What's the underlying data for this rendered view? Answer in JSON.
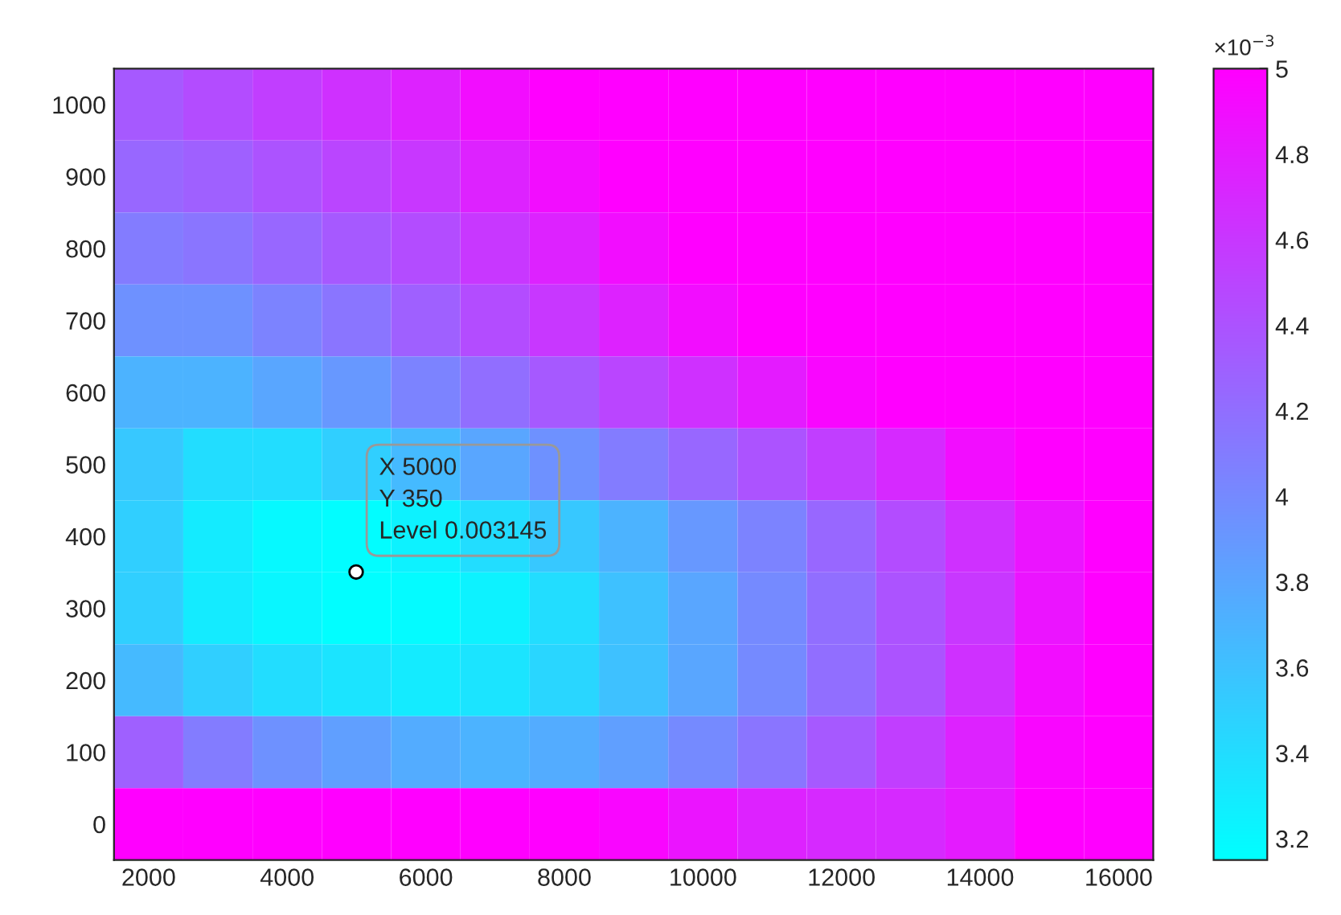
{
  "chart_data": {
    "type": "heatmap",
    "categories": [
      "2000",
      null,
      "4000",
      null,
      "6000",
      null,
      "8000",
      null,
      "10000",
      null,
      "12000",
      null,
      "14000",
      null,
      "16000"
    ],
    "y_categories": [
      "1000",
      "900",
      "800",
      "700",
      "600",
      "500",
      "400",
      "300",
      "200",
      "100",
      "0"
    ],
    "cells": [
      [
        4.35,
        4.45,
        4.55,
        4.65,
        4.75,
        4.9,
        5,
        5,
        5,
        5,
        5,
        5,
        5,
        5,
        5
      ],
      [
        4.25,
        4.3,
        4.4,
        4.5,
        4.6,
        4.75,
        4.9,
        5,
        5,
        5,
        5,
        5,
        5,
        5,
        5
      ],
      [
        4.1,
        4.15,
        4.25,
        4.35,
        4.45,
        4.6,
        4.75,
        4.9,
        5,
        5,
        5,
        5,
        5,
        5,
        5
      ],
      [
        3.95,
        3.95,
        4.05,
        4.15,
        4.3,
        4.45,
        4.6,
        4.75,
        4.9,
        5,
        5,
        5,
        5,
        5,
        5
      ],
      [
        3.7,
        3.7,
        3.8,
        3.9,
        4.05,
        4.2,
        4.35,
        4.5,
        4.65,
        4.8,
        4.95,
        5,
        5,
        5,
        5
      ],
      [
        3.55,
        3.4,
        3.4,
        3.5,
        3.65,
        3.8,
        3.95,
        4.1,
        4.25,
        4.4,
        4.55,
        4.7,
        4.9,
        5,
        5
      ],
      [
        3.5,
        3.3,
        3.2,
        3.17,
        3.25,
        3.4,
        3.55,
        3.7,
        3.9,
        4.05,
        4.25,
        4.45,
        4.65,
        4.85,
        5
      ],
      [
        3.5,
        3.3,
        3.22,
        3.16,
        3.18,
        3.25,
        3.4,
        3.6,
        3.8,
        4.0,
        4.2,
        4.4,
        4.6,
        4.85,
        5
      ],
      [
        3.65,
        3.5,
        3.4,
        3.35,
        3.3,
        3.35,
        3.45,
        3.6,
        3.8,
        4.0,
        4.2,
        4.4,
        4.65,
        4.9,
        5
      ],
      [
        4.3,
        4.1,
        3.95,
        3.85,
        3.75,
        3.7,
        3.75,
        3.85,
        4.0,
        4.15,
        4.35,
        4.55,
        4.75,
        4.95,
        5
      ],
      [
        5,
        5,
        5,
        5,
        5,
        5,
        5,
        4.95,
        4.85,
        4.75,
        4.7,
        4.7,
        4.8,
        5,
        5
      ]
    ],
    "clim": [
      3.15,
      5
    ],
    "cticks": [
      3.2,
      3.4,
      3.6,
      3.8,
      4,
      4.2,
      4.4,
      4.6,
      4.8,
      5
    ],
    "clabel": "×10$^{−3}$",
    "annotations": [
      "X 5000\nY 350\nLevel 0.003145"
    ]
  }
}
